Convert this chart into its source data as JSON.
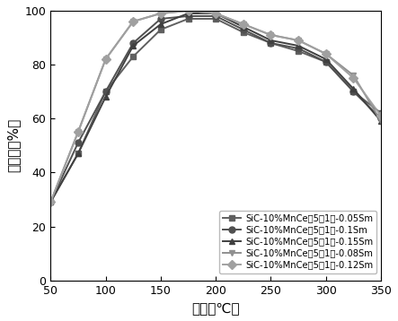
{
  "x": [
    50,
    75,
    100,
    125,
    150,
    175,
    200,
    225,
    250,
    275,
    300,
    325,
    350
  ],
  "series": [
    {
      "label": "SiC-10%MnCe（5：1）-0.05Sm",
      "marker": "s",
      "color": "#606060",
      "y": [
        29,
        47,
        70,
        83,
        93,
        97,
        97,
        92,
        88,
        85,
        81,
        70,
        62
      ]
    },
    {
      "label": "SiC-10%MnCe（5：1）-0.1Sm",
      "marker": "o",
      "color": "#505050",
      "y": [
        29,
        51,
        70,
        88,
        97,
        98,
        98,
        93,
        88,
        86,
        81,
        70,
        60
      ]
    },
    {
      "label": "SiC-10%MnCe（5：1）-0.15Sm",
      "marker": "^",
      "color": "#404040",
      "y": [
        29,
        47,
        68,
        87,
        95,
        99,
        99,
        94,
        89,
        87,
        82,
        71,
        59
      ]
    },
    {
      "label": "SiC-10%MnCe（5：1）-0.08Sm",
      "marker": "v",
      "color": "#909090",
      "y": [
        29,
        55,
        82,
        96,
        99,
        100,
        99,
        95,
        91,
        89,
        84,
        76,
        59
      ]
    },
    {
      "label": "SiC-10%MnCe（5：1）-0.12Sm",
      "marker": "D",
      "color": "#a0a0a0",
      "y": [
        29,
        55,
        82,
        96,
        99,
        100,
        99,
        95,
        91,
        89,
        84,
        75,
        61
      ]
    }
  ],
  "xlabel": "温度（℃）",
  "ylabel": "转化率（%）",
  "xlim": [
    50,
    350
  ],
  "ylim": [
    0,
    100
  ],
  "xticks": [
    50,
    100,
    150,
    200,
    250,
    300,
    350
  ],
  "yticks": [
    0,
    20,
    40,
    60,
    80,
    100
  ],
  "background_color": "#ffffff",
  "linewidth": 1.4,
  "markersize": 5,
  "label_fontsize": 11,
  "tick_fontsize": 9,
  "legend_fontsize": 7.2
}
